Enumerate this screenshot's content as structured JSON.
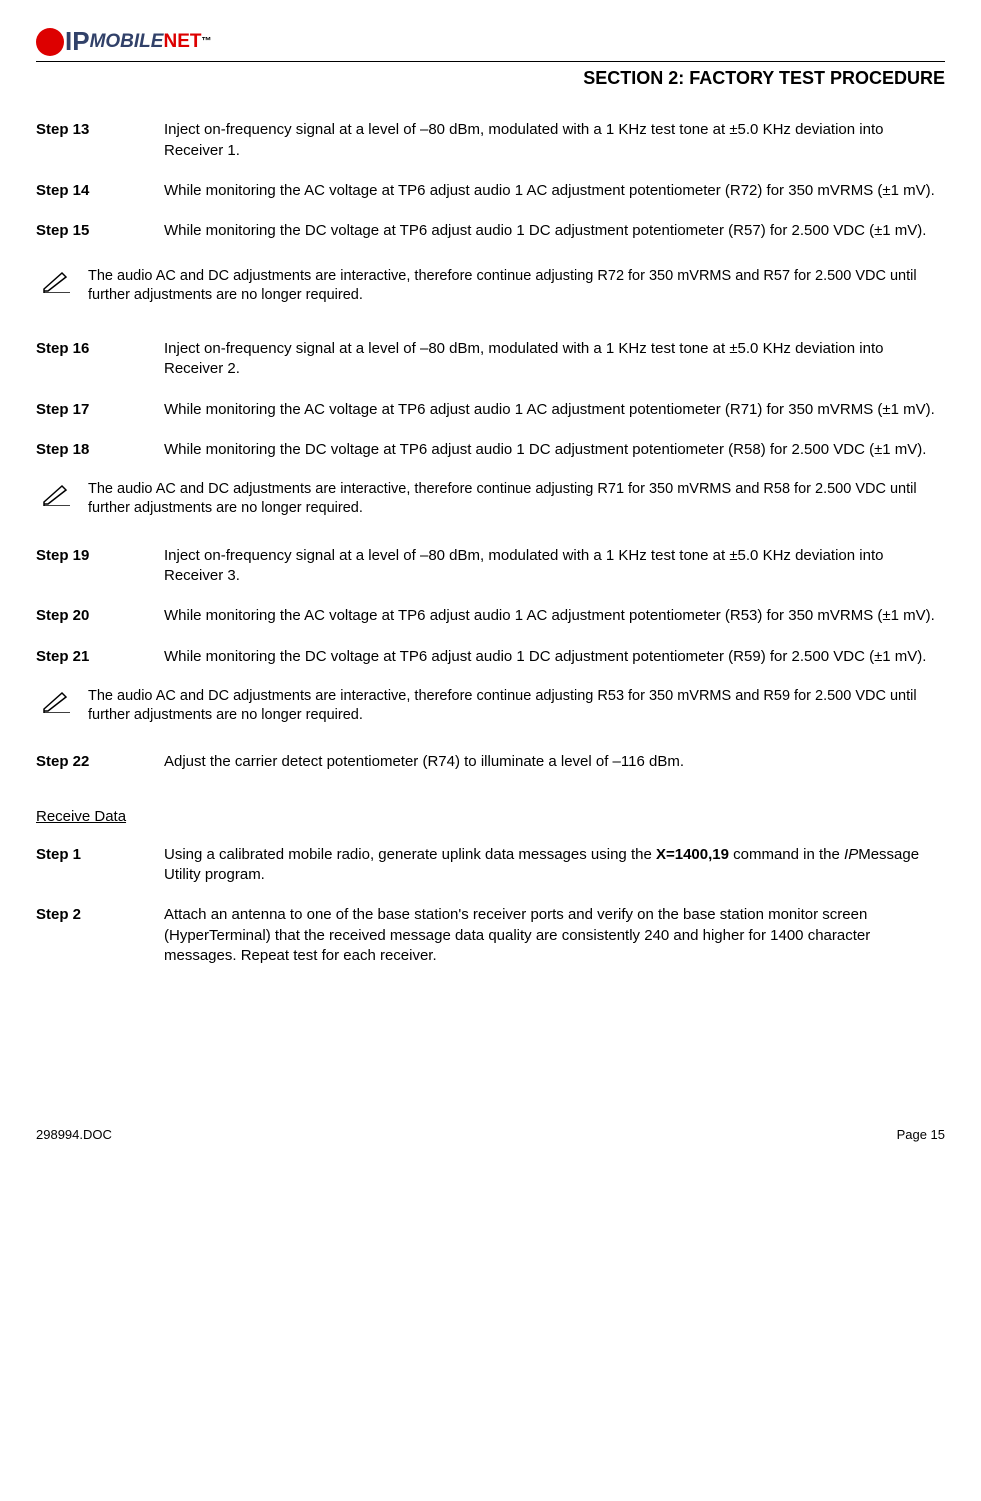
{
  "logo": {
    "ip": "IP",
    "mobile": "MOBILE",
    "net": "NET"
  },
  "section_title": "SECTION 2:  FACTORY TEST PROCEDURE",
  "steps_a": [
    {
      "label": "Step 13",
      "body": "Inject on-frequency signal at a level of –80 dBm, modulated with a 1 KHz test tone at ±5.0 KHz deviation into Receiver 1."
    },
    {
      "label": "Step 14",
      "body": "While monitoring the AC voltage at TP6 adjust audio 1 AC adjustment potentiometer (R72) for 350 mVRMS (±1 mV)."
    },
    {
      "label": "Step 15",
      "body": "While monitoring the DC voltage at TP6 adjust audio 1 DC adjustment potentiometer (R57) for 2.500 VDC (±1 mV)."
    }
  ],
  "note1": "The audio AC and DC adjustments are interactive, therefore continue adjusting R72 for 350 mVRMS and R57 for 2.500 VDC until further adjustments are no longer required.",
  "steps_b": [
    {
      "label": "Step 16",
      "body": "Inject on-frequency signal at a level of –80 dBm, modulated with a 1 KHz test tone at ±5.0 KHz deviation into Receiver 2."
    },
    {
      "label": "Step 17",
      "body": "While monitoring the AC voltage at TP6 adjust audio 1 AC adjustment potentiometer (R71) for 350 mVRMS (±1 mV)."
    },
    {
      "label": "Step 18",
      "body": "While monitoring the DC voltage at TP6 adjust audio 1 DC adjustment potentiometer (R58) for 2.500 VDC (±1 mV)."
    }
  ],
  "note2": "The audio AC and DC adjustments are interactive, therefore continue adjusting R71 for 350 mVRMS and R58 for 2.500 VDC until further adjustments are no longer required.",
  "steps_c": [
    {
      "label": "Step 19",
      "body": "Inject on-frequency signal at a level of –80 dBm, modulated with a 1 KHz test tone at ±5.0 KHz deviation into Receiver 3."
    },
    {
      "label": "Step 20",
      "body": "While monitoring the AC voltage at TP6 adjust audio 1 AC adjustment potentiometer (R53) for 350 mVRMS (±1 mV)."
    },
    {
      "label": "Step 21",
      "body": "While monitoring the DC voltage at TP6 adjust audio 1 DC adjustment potentiometer (R59) for 2.500 VDC (±1 mV)."
    }
  ],
  "note3": "The audio AC and DC adjustments are interactive, therefore continue adjusting R53 for 350 mVRMS and R59 for 2.500 VDC until further adjustments are no longer required.",
  "step22": {
    "label": "Step 22",
    "body": "Adjust the carrier detect potentiometer (R74) to illuminate a level of –116 dBm."
  },
  "subhead": "Receive Data",
  "rd_steps": [
    {
      "label": "Step 1",
      "html": "Using a calibrated mobile radio, generate uplink data messages using the <span class='x-bold'>X=1400,19</span> command in the <span class='mono-italic'>IP</span>Message Utility program."
    },
    {
      "label": "Step 2",
      "body": "Attach an antenna to one of the base station's receiver ports and verify on the base station monitor screen (HyperTerminal) that the received message data quality are consistently 240 and higher for 1400 character messages.  Repeat test for each receiver."
    }
  ],
  "footer": {
    "doc": "298994.DOC",
    "page": "Page 15"
  },
  "colors": {
    "brand_blue": "#314169",
    "brand_red": "#d00"
  }
}
